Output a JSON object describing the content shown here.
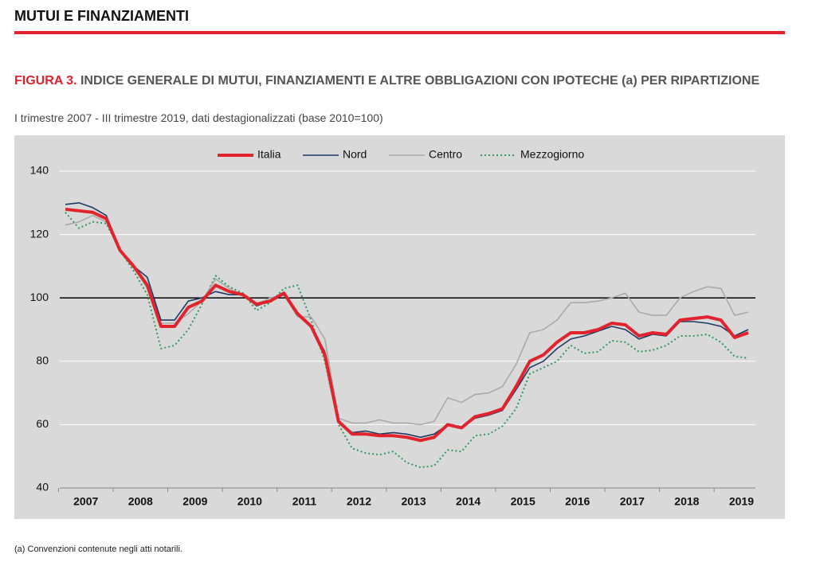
{
  "header": "MUTUI E FINANZIAMENTI",
  "chart_data": {
    "type": "line",
    "figure_label": "FIGURA 3.",
    "title": "INDICE GENERALE DI MUTUI, FINANZIAMENTI E ALTRE OBBLIGAZIONI CON IPOTECHE (a) PER RIPARTIZIONE",
    "subtitle": "I trimestre 2007 - III trimestre 2019, dati destagionalizzati (base 2010=100)",
    "note": "(a) Convenzioni contenute negli atti notarili.",
    "categories": [
      "2007",
      null,
      null,
      null,
      "2008",
      null,
      null,
      null,
      "2009",
      null,
      null,
      null,
      "2010",
      null,
      null,
      null,
      "2011",
      null,
      null,
      null,
      "2012",
      null,
      null,
      null,
      "2013",
      null,
      null,
      null,
      "2014",
      null,
      null,
      null,
      "2015",
      null,
      null,
      null,
      "2016",
      null,
      null,
      null,
      "2017",
      null,
      null,
      null,
      "2018",
      null,
      null,
      null,
      "2019",
      null,
      null
    ],
    "ylim": [
      40,
      140
    ],
    "yticks": [
      40,
      60,
      80,
      100,
      120,
      140
    ],
    "grid": true,
    "reference_line": 100,
    "series": [
      {
        "name": "Italia",
        "color": "#e0232c",
        "width": 4,
        "dash": "none",
        "values": [
          128,
          127.5,
          127,
          125,
          115,
          110,
          104,
          91,
          91,
          97,
          99,
          104,
          102,
          101,
          98,
          99,
          101.5,
          95,
          91,
          82,
          61,
          57,
          57,
          56.5,
          56.5,
          56,
          55,
          56,
          60,
          59,
          62.5,
          63.5,
          65,
          72,
          80,
          82,
          86,
          89,
          89,
          90,
          92,
          91.5,
          88,
          89,
          88.5,
          93,
          93.5,
          94,
          93,
          87.5,
          89
        ]
      },
      {
        "name": "Nord",
        "color": "#1f3864",
        "width": 1.6,
        "dash": "none",
        "values": [
          129.5,
          130,
          128.5,
          126,
          115,
          110,
          106.5,
          93,
          93,
          99,
          100,
          102,
          101,
          101,
          97.5,
          99,
          101,
          95,
          91,
          83,
          61,
          57.5,
          58,
          57,
          57.5,
          57,
          56,
          57,
          60,
          59,
          62,
          63,
          64.5,
          71,
          78,
          80,
          84,
          87,
          88,
          89.5,
          91,
          90,
          87,
          88.5,
          88,
          92.5,
          92.5,
          92,
          91,
          88,
          90
        ]
      },
      {
        "name": "Centro",
        "color": "#aaaaaa",
        "width": 1.6,
        "dash": "none",
        "values": [
          123,
          124,
          126,
          124,
          115,
          110,
          103,
          92,
          92,
          95,
          99,
          106,
          103,
          101,
          98,
          100,
          101,
          94,
          94,
          87,
          62,
          60.5,
          60.5,
          61.5,
          60.5,
          60.5,
          60,
          61,
          68.5,
          67,
          69.5,
          70,
          72,
          79,
          89,
          90,
          93,
          98.5,
          98.5,
          99,
          100,
          101.5,
          95.5,
          94.5,
          94.5,
          100,
          102,
          103.5,
          103,
          94.5,
          95.5
        ]
      },
      {
        "name": "Mezzogiorno",
        "color": "#2e9a5e",
        "width": 2,
        "dash": "2 3",
        "values": [
          127,
          122,
          124,
          123.5,
          115,
          108.5,
          101,
          84,
          85,
          90,
          98,
          107,
          103.5,
          101.5,
          96,
          98.5,
          103,
          104,
          93,
          80,
          60,
          52.5,
          51,
          50.5,
          51.5,
          48,
          46.5,
          47,
          52,
          51.5,
          56.5,
          57,
          59.5,
          65,
          76,
          78,
          80,
          85,
          82.5,
          83,
          86.5,
          86,
          83,
          83.5,
          85,
          88,
          88,
          88.5,
          86,
          81.5,
          81
        ]
      }
    ]
  }
}
